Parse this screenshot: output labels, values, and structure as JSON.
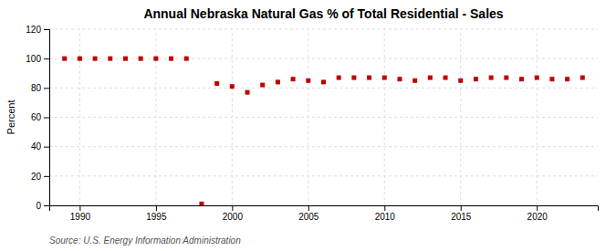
{
  "chart_data": {
    "type": "scatter",
    "title": "Annual Nebraska Natural Gas % of Total Residential - Sales",
    "ylabel": "Percent",
    "source": "Source: U.S. Energy Information Administration",
    "x": [
      1989,
      1990,
      1991,
      1992,
      1993,
      1994,
      1995,
      1996,
      1997,
      1998,
      1999,
      2000,
      2001,
      2002,
      2003,
      2004,
      2005,
      2006,
      2007,
      2008,
      2009,
      2010,
      2011,
      2012,
      2013,
      2014,
      2015,
      2016,
      2017,
      2018,
      2019,
      2020,
      2021,
      2022,
      2023
    ],
    "values": [
      100,
      100,
      100,
      100,
      100,
      100,
      100,
      100,
      100,
      1,
      83,
      81,
      77,
      82,
      84,
      86,
      85,
      84,
      87,
      87,
      87,
      87,
      86,
      85,
      87,
      87,
      85,
      86,
      87,
      87,
      86,
      87,
      86,
      86,
      87
    ],
    "color": "#c00000",
    "marker": "square",
    "xlim": [
      1988,
      2024
    ],
    "ylim": [
      0,
      120
    ],
    "xticks": [
      1990,
      1995,
      2000,
      2005,
      2010,
      2015,
      2020
    ],
    "yticks": [
      0,
      20,
      40,
      60,
      80,
      100,
      120
    ],
    "grid": true
  }
}
